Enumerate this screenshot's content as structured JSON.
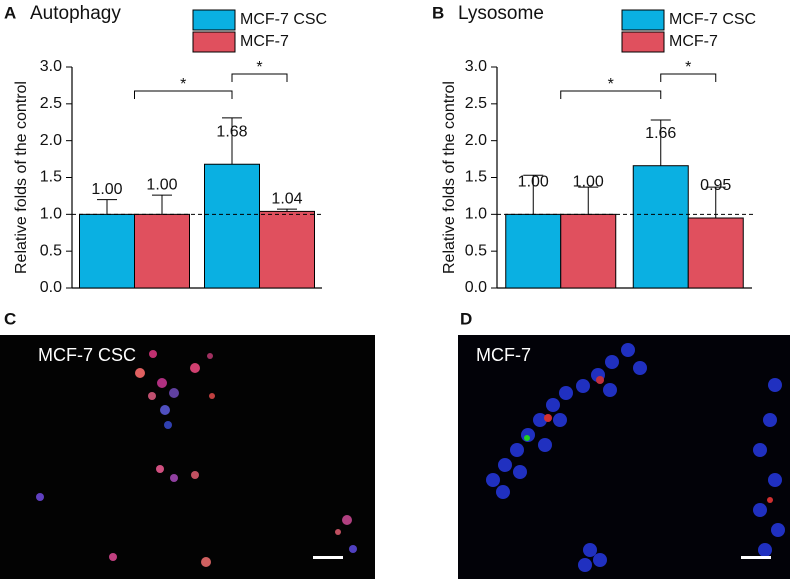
{
  "chart_data": [
    {
      "type": "bar",
      "panel": "A",
      "title": "Autophagy",
      "y_label": "Relative folds of the control",
      "categories": [
        null,
        null
      ],
      "series": [
        {
          "name": "MCF-7 CSC",
          "color": "#0ab0e2",
          "values": [
            1.0,
            1.68
          ],
          "value_labels": [
            "1.00",
            "1.68"
          ],
          "errors": [
            0.2,
            0.63
          ]
        },
        {
          "name": "MCF-7",
          "color": "#e0505e",
          "values": [
            1.0,
            1.04
          ],
          "value_labels": [
            "1.00",
            "1.04"
          ],
          "errors": [
            0.26,
            0.03
          ]
        }
      ],
      "ylim": [
        0,
        3
      ],
      "yticks": [
        {
          "value": 0,
          "label": "0.0"
        },
        {
          "value": 0.5,
          "label": "0.5"
        },
        {
          "value": 1,
          "label": "1.0"
        },
        {
          "value": 1.5,
          "label": "1.5"
        },
        {
          "value": 2,
          "label": "2.0"
        },
        {
          "value": 2.5,
          "label": "2.5"
        },
        {
          "value": 3,
          "label": "3.0"
        }
      ],
      "reference_line": 1,
      "significance_labels": [
        "*",
        "*"
      ]
    },
    {
      "type": "bar",
      "panel": "B",
      "title": "Lysosome",
      "y_label": "Relative folds of the control",
      "categories": [
        null,
        null
      ],
      "series": [
        {
          "name": "MCF-7 CSC",
          "color": "#0ab0e2",
          "values": [
            1.0,
            1.66
          ],
          "value_labels": [
            "1.00",
            "1.66"
          ],
          "errors": [
            0.53,
            0.62
          ]
        },
        {
          "name": "MCF-7",
          "color": "#e0505e",
          "values": [
            1.0,
            0.95
          ],
          "value_labels": [
            "1.00",
            "0.95"
          ],
          "errors": [
            0.37,
            0.42
          ]
        }
      ],
      "ylim": [
        0,
        3
      ],
      "yticks": [
        {
          "value": 0,
          "label": "0.0"
        },
        {
          "value": 0.5,
          "label": "0.5"
        },
        {
          "value": 1,
          "label": "1.0"
        },
        {
          "value": 1.5,
          "label": "1.5"
        },
        {
          "value": 2,
          "label": "2.0"
        },
        {
          "value": 2.5,
          "label": "2.5"
        },
        {
          "value": 3,
          "label": "3.0"
        }
      ],
      "reference_line": 1,
      "significance_labels": [
        "*",
        "*"
      ]
    }
  ],
  "panels": [
    {
      "letter": "C",
      "label": "MCF-7 CSC"
    },
    {
      "letter": "D",
      "label": "MCF-7"
    }
  ]
}
